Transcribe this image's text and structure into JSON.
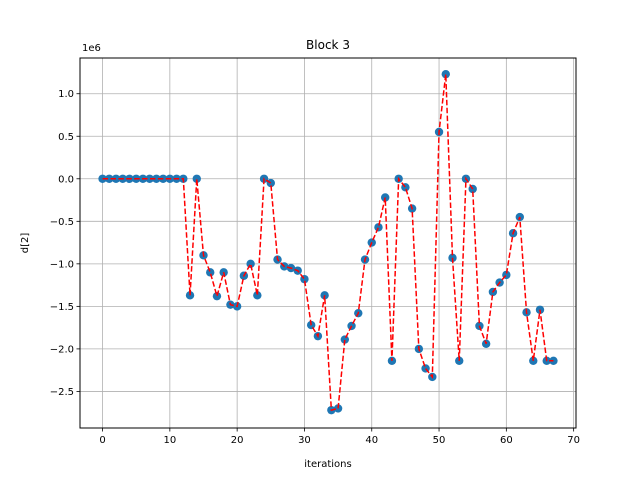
{
  "chart_data": {
    "type": "scatter",
    "title": "Block 3",
    "xlabel": "iterations",
    "ylabel": "d[2]",
    "y_offset_label": "1e6",
    "xlim": [
      -3.35,
      70.35
    ],
    "ylim": [
      -2.93,
      1.42
    ],
    "xticks": [
      0,
      10,
      20,
      30,
      40,
      50,
      60,
      70
    ],
    "xtick_labels": [
      "0",
      "10",
      "20",
      "30",
      "40",
      "50",
      "60",
      "70"
    ],
    "yticks": [
      1.0,
      0.5,
      0.0,
      -0.5,
      -1.0,
      -1.5,
      -2.0,
      -2.5
    ],
    "ytick_labels": [
      "1.0",
      "0.5",
      "0.0",
      "−0.5",
      "−1.0",
      "−1.5",
      "−2.0",
      "−2.5"
    ],
    "grid": true,
    "series": [
      {
        "marker_color": "#1f77b4",
        "line_color": "#ff0000",
        "line_style": "dashed",
        "x": [
          0,
          1,
          2,
          3,
          4,
          5,
          6,
          7,
          8,
          9,
          10,
          11,
          12,
          13,
          14,
          15,
          16,
          17,
          18,
          19,
          20,
          21,
          22,
          23,
          24,
          25,
          26,
          27,
          28,
          29,
          30,
          31,
          32,
          33,
          34,
          35,
          36,
          37,
          38,
          39,
          40,
          41,
          42,
          43,
          44,
          45,
          46,
          47,
          48,
          49,
          50,
          51,
          52,
          53,
          54,
          55,
          56,
          57,
          58,
          59,
          60,
          61,
          62,
          63,
          64,
          65,
          66,
          67
        ],
        "y": [
          0,
          0,
          0,
          0,
          0,
          0,
          0,
          0,
          0,
          0,
          0,
          0,
          0,
          -1.37,
          0,
          -0.9,
          -1.1,
          -1.38,
          -1.1,
          -1.48,
          -1.5,
          -1.14,
          -1.0,
          -1.37,
          0,
          -0.05,
          -0.95,
          -1.03,
          -1.05,
          -1.08,
          -1.18,
          -1.72,
          -1.85,
          -1.37,
          -2.72,
          -2.7,
          -1.89,
          -1.73,
          -1.58,
          -0.95,
          -0.75,
          -0.57,
          -0.22,
          -2.14,
          0,
          -0.1,
          -0.35,
          -2.0,
          -2.23,
          -2.33,
          0.55,
          1.23,
          -0.93,
          -2.14,
          0,
          -0.12,
          -1.73,
          -1.94,
          -1.33,
          -1.22,
          -1.13,
          -0.64,
          -0.45,
          -1.57,
          -2.14,
          -1.54,
          -2.14,
          -2.14
        ]
      }
    ]
  }
}
